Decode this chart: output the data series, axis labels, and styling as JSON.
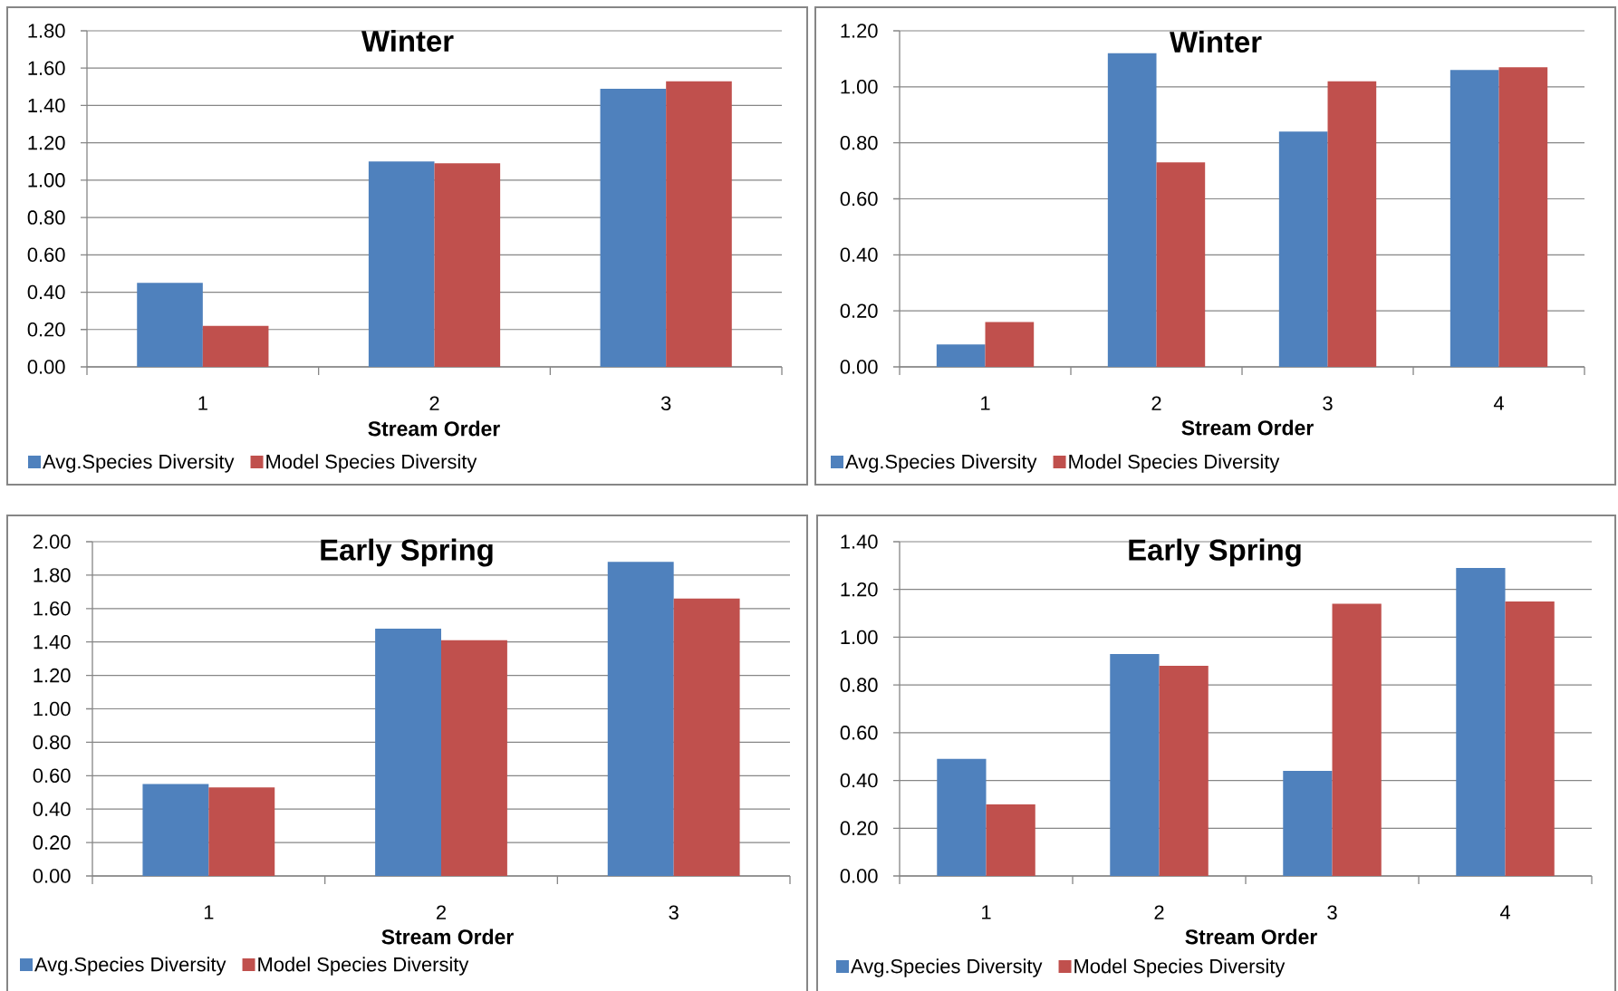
{
  "chart_data": [
    {
      "type": "bar",
      "title": "Winter",
      "xlabel": "Stream Order",
      "categories": [
        "1",
        "2",
        "3"
      ],
      "series": [
        {
          "name": "Avg.Species Diversity",
          "color": "#4f81bd",
          "values": [
            0.45,
            1.1,
            1.49
          ]
        },
        {
          "name": "Model Species Diversity",
          "color": "#c0504d",
          "values": [
            0.22,
            1.09,
            1.53
          ]
        }
      ],
      "ylim": [
        0,
        1.8
      ],
      "yticks": [
        {
          "value": 0,
          "label": "0.00"
        },
        {
          "value": 0.2,
          "label": "0.20"
        },
        {
          "value": 0.4,
          "label": "0.40"
        },
        {
          "value": 0.6,
          "label": "0.60"
        },
        {
          "value": 0.8,
          "label": "0.80"
        },
        {
          "value": 1.0,
          "label": "1.00"
        },
        {
          "value": 1.2,
          "label": "1.20"
        },
        {
          "value": 1.4,
          "label": "1.40"
        },
        {
          "value": 1.6,
          "label": "1.60"
        },
        {
          "value": 1.8,
          "label": "1.80"
        }
      ],
      "grid": "y",
      "legend": "bottom left"
    },
    {
      "type": "bar",
      "title": "Winter",
      "xlabel": "Stream Order",
      "categories": [
        "1",
        "2",
        "3",
        "4"
      ],
      "series": [
        {
          "name": "Avg.Species Diversity",
          "color": "#4f81bd",
          "values": [
            0.08,
            1.12,
            0.84,
            1.06
          ]
        },
        {
          "name": "Model Species Diversity",
          "color": "#c0504d",
          "values": [
            0.16,
            0.73,
            1.02,
            1.07
          ]
        }
      ],
      "ylim": [
        0,
        1.2
      ],
      "yticks": [
        {
          "value": 0,
          "label": "0.00"
        },
        {
          "value": 0.2,
          "label": "0.20"
        },
        {
          "value": 0.4,
          "label": "0.40"
        },
        {
          "value": 0.6,
          "label": "0.60"
        },
        {
          "value": 0.8,
          "label": "0.80"
        },
        {
          "value": 1.0,
          "label": "1.00"
        },
        {
          "value": 1.2,
          "label": "1.20"
        }
      ],
      "grid": "y",
      "legend": "bottom left"
    },
    {
      "type": "bar",
      "title": "Early Spring",
      "xlabel": "Stream Order",
      "categories": [
        "1",
        "2",
        "3"
      ],
      "series": [
        {
          "name": "Avg.Species Diversity",
          "color": "#4f81bd",
          "values": [
            0.55,
            1.48,
            1.88
          ]
        },
        {
          "name": "Model Species Diversity",
          "color": "#c0504d",
          "values": [
            0.53,
            1.41,
            1.66
          ]
        }
      ],
      "ylim": [
        0,
        2.0
      ],
      "yticks": [
        {
          "value": 0,
          "label": "0.00"
        },
        {
          "value": 0.2,
          "label": "0.20"
        },
        {
          "value": 0.4,
          "label": "0.40"
        },
        {
          "value": 0.6,
          "label": "0.60"
        },
        {
          "value": 0.8,
          "label": "0.80"
        },
        {
          "value": 1.0,
          "label": "1.00"
        },
        {
          "value": 1.2,
          "label": "1.20"
        },
        {
          "value": 1.4,
          "label": "1.40"
        },
        {
          "value": 1.6,
          "label": "1.60"
        },
        {
          "value": 1.8,
          "label": "1.80"
        },
        {
          "value": 2.0,
          "label": "2.00"
        }
      ],
      "grid": "y",
      "legend": "bottom left"
    },
    {
      "type": "bar",
      "title": "Early Spring",
      "xlabel": "Stream Order",
      "categories": [
        "1",
        "2",
        "3",
        "4"
      ],
      "series": [
        {
          "name": "Avg.Species Diversity",
          "color": "#4f81bd",
          "values": [
            0.49,
            0.93,
            0.44,
            1.29
          ]
        },
        {
          "name": "Model Species Diversity",
          "color": "#c0504d",
          "values": [
            0.3,
            0.88,
            1.14,
            1.15
          ]
        }
      ],
      "ylim": [
        0,
        1.4
      ],
      "yticks": [
        {
          "value": 0,
          "label": "0.00"
        },
        {
          "value": 0.2,
          "label": "0.20"
        },
        {
          "value": 0.4,
          "label": "0.40"
        },
        {
          "value": 0.6,
          "label": "0.60"
        },
        {
          "value": 0.8,
          "label": "0.80"
        },
        {
          "value": 1.0,
          "label": "1.00"
        },
        {
          "value": 1.2,
          "label": "1.20"
        },
        {
          "value": 1.4,
          "label": "1.40"
        }
      ],
      "grid": "y",
      "legend": "bottom left"
    }
  ]
}
